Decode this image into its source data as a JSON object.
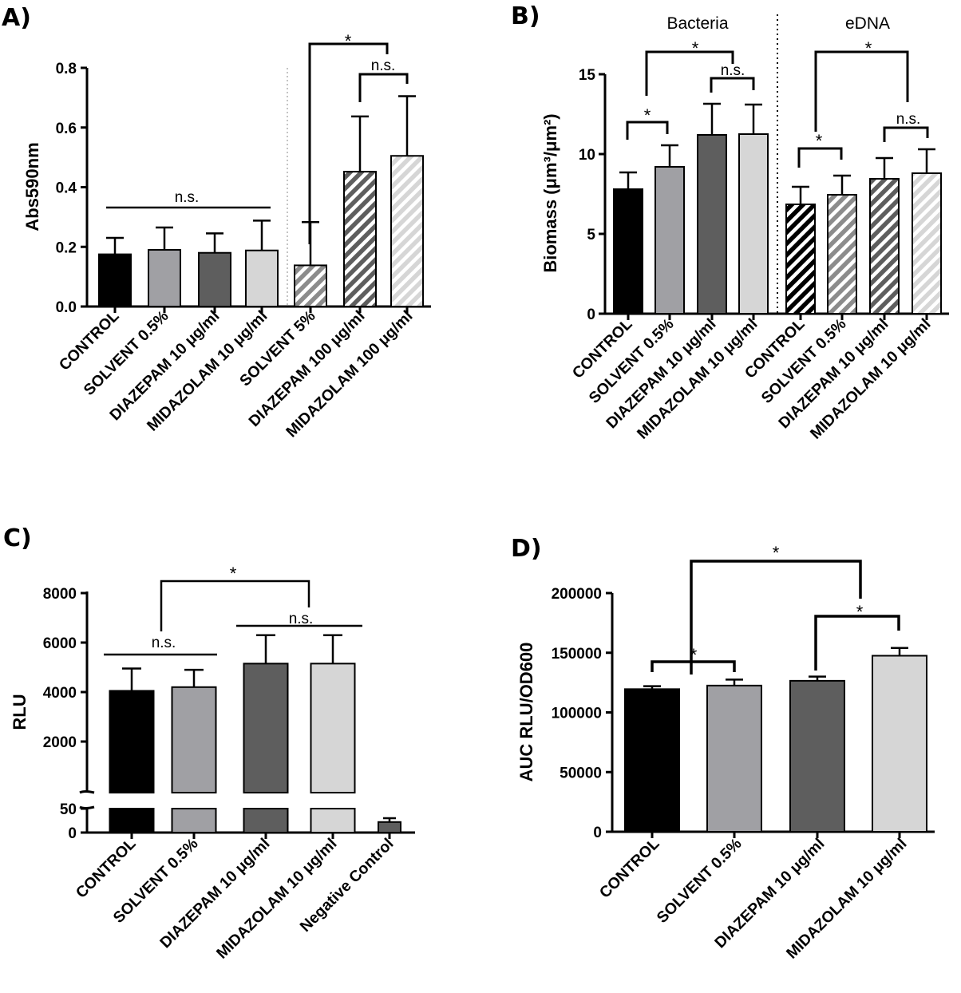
{
  "chart_data": [
    {
      "panel": "A)",
      "type": "bar",
      "ylabel": "Abs590nm",
      "ylim": [
        0,
        0.8
      ],
      "ytick_labels": [
        "0.0",
        "0.2",
        "0.4",
        "0.6",
        "0.8"
      ],
      "categories": [
        "CONTROL",
        "SOLVENT 0.5%",
        "DIAZEPAM 10 μg/ml",
        "MIDAZOLAM 10 μg/ml",
        "SOLVENT 5%",
        "DIAZEPAM 100 μg/ml",
        "MIDAZOLAM 100 μg/ml"
      ],
      "values": [
        0.175,
        0.19,
        0.18,
        0.188,
        0.138,
        0.452,
        0.505
      ],
      "errors": [
        0.055,
        0.075,
        0.065,
        0.1,
        0.145,
        0.185,
        0.2
      ],
      "fills": [
        "#000000",
        "#a0a0a4",
        "#5e5e5e",
        "#d6d6d6",
        "#8c8c8c",
        "#5e5e5e",
        "#d6d6d6"
      ],
      "hatched": [
        false,
        false,
        false,
        false,
        true,
        true,
        true
      ],
      "annotations": [
        "n.s.",
        "*",
        "n.s."
      ]
    },
    {
      "panel": "B)",
      "type": "bar",
      "ylabel": "Biomass (μm³/μm²)",
      "ylim": [
        0,
        15
      ],
      "ytick_labels": [
        "0",
        "5",
        "10",
        "15"
      ],
      "groups": [
        "Bacteria",
        "eDNA"
      ],
      "categories": [
        "CONTROL",
        "SOLVENT 0.5%",
        "DIAZEPAM 10 μg/ml",
        "MIDAZOLAM 10 μg/ml",
        "CONTROL",
        "SOLVENT 0.5%",
        "DIAZEPAM 10 μg/ml",
        "MIDAZOLAM 10 μg/ml"
      ],
      "values": [
        7.8,
        9.2,
        11.2,
        11.25,
        6.85,
        7.45,
        8.45,
        8.8
      ],
      "errors": [
        1.05,
        1.35,
        1.95,
        1.85,
        1.1,
        1.2,
        1.3,
        1.5
      ],
      "fills": [
        "#000000",
        "#a0a0a4",
        "#5e5e5e",
        "#d6d6d6",
        "#000000",
        "#8c8c8c",
        "#5e5e5e",
        "#d6d6d6"
      ],
      "hatched": [
        false,
        false,
        false,
        false,
        true,
        true,
        true,
        true
      ],
      "annotations": [
        "*",
        "*",
        "n.s.",
        "*",
        "*",
        "n.s."
      ]
    },
    {
      "panel": "C)",
      "type": "bar",
      "ylabel": "RLU",
      "axis_break": true,
      "ytick_labels_upper": [
        "2000",
        "4000",
        "6000",
        "8000"
      ],
      "ytick_labels_lower": [
        "0",
        "50"
      ],
      "categories": [
        "CONTROL",
        "SOLVENT 0.5%",
        "DIAZEPAM 10 μg/ml",
        "MIDAZOLAM 10 μg/ml",
        "Negative Control"
      ],
      "values": [
        4050,
        4200,
        5150,
        5150,
        22
      ],
      "errors": [
        900,
        700,
        1150,
        1150,
        8
      ],
      "fills": [
        "#000000",
        "#a0a0a4",
        "#5e5e5e",
        "#d6d6d6",
        "#5e5e5e"
      ],
      "annotations": [
        "*",
        "n.s.",
        "n.s."
      ]
    },
    {
      "panel": "D)",
      "type": "bar",
      "ylabel": "AUC RLU/OD600",
      "ylim": [
        0,
        200000
      ],
      "ytick_labels": [
        "0",
        "50000",
        "100000",
        "150000",
        "200000"
      ],
      "categories": [
        "CONTROL",
        "SOLVENT 0.5%",
        "DIAZEPAM 10 μg/ml",
        "MIDAZOLAM 10 μg/ml"
      ],
      "values": [
        119500,
        122500,
        126500,
        147500
      ],
      "errors": [
        2500,
        5000,
        3500,
        6500
      ],
      "fills": [
        "#000000",
        "#a0a0a4",
        "#5e5e5e",
        "#d6d6d6"
      ],
      "annotations": [
        "*",
        "*",
        "*"
      ]
    }
  ]
}
